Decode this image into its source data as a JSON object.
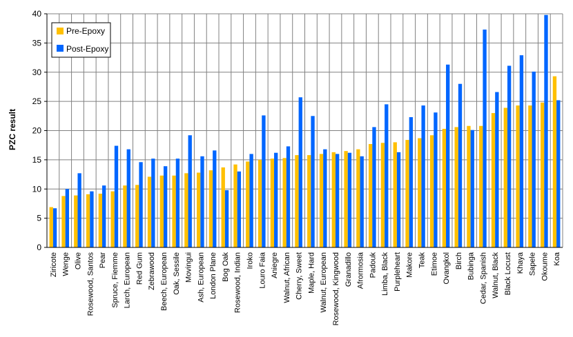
{
  "chart_data": {
    "type": "bar",
    "title": "",
    "xlabel": "",
    "ylabel": "PZC result",
    "ylim": [
      0,
      40
    ],
    "yticks": [
      0,
      5,
      10,
      15,
      20,
      25,
      30,
      35,
      40
    ],
    "grid": true,
    "legend_position": "top-left",
    "categories": [
      "Ziricote",
      "Wenge",
      "Olive",
      "Rosewood, Santos",
      "Pear",
      "Spruce, Fiemme",
      "Larch, European",
      "Red Gum",
      "Zebrawood",
      "Beech, European",
      "Oak, Sessile",
      "Movingui",
      "Ash, European",
      "London Plane",
      "Bog Oak",
      "Rosewood, Indian",
      "Iroko",
      "Louro Faia",
      "Aniegre",
      "Walnut, African",
      "Cherry, Sweet",
      "Maple, Hard",
      "Walnut, European",
      "Rosewood, Kingwood",
      "Granadillo",
      "Afrormosia",
      "Padouk",
      "Limba, Black",
      "Purpleheart",
      "Makore",
      "Teak",
      "Etimoe",
      "Ovangkol",
      "Birch",
      "Bubinga",
      "Cedar, Spanish",
      "Walnut, Black",
      "Black Locust",
      "Khaya",
      "Sapele",
      "Okoume",
      "Koa"
    ],
    "series": [
      {
        "name": "Pre-Epoxy",
        "color": "#FFC000",
        "values": [
          6.9,
          8.8,
          8.9,
          9.1,
          9.2,
          9.6,
          10.6,
          10.7,
          12.1,
          12.3,
          12.3,
          12.7,
          12.8,
          13.2,
          13.7,
          14.2,
          14.7,
          15.0,
          15.2,
          15.3,
          15.8,
          15.8,
          16.0,
          16.3,
          16.5,
          16.8,
          17.7,
          17.9,
          18.0,
          18.4,
          18.7,
          19.2,
          20.3,
          20.6,
          20.8,
          20.8,
          23.0,
          23.9,
          24.3,
          24.3,
          24.8,
          29.3
        ]
      },
      {
        "name": "Post-Epoxy",
        "color": "#0066FF",
        "values": [
          6.7,
          10.0,
          12.7,
          9.6,
          10.6,
          17.4,
          16.8,
          14.6,
          15.2,
          13.9,
          15.2,
          19.2,
          15.6,
          16.6,
          9.8,
          13.0,
          16.0,
          22.6,
          16.2,
          17.3,
          25.7,
          22.5,
          16.8,
          16.0,
          16.2,
          15.6,
          20.6,
          24.5,
          16.3,
          22.3,
          24.3,
          23.1,
          31.3,
          28.0,
          20.1,
          37.3,
          26.6,
          31.1,
          32.9,
          30.1,
          39.8,
          25.2
        ]
      }
    ]
  }
}
